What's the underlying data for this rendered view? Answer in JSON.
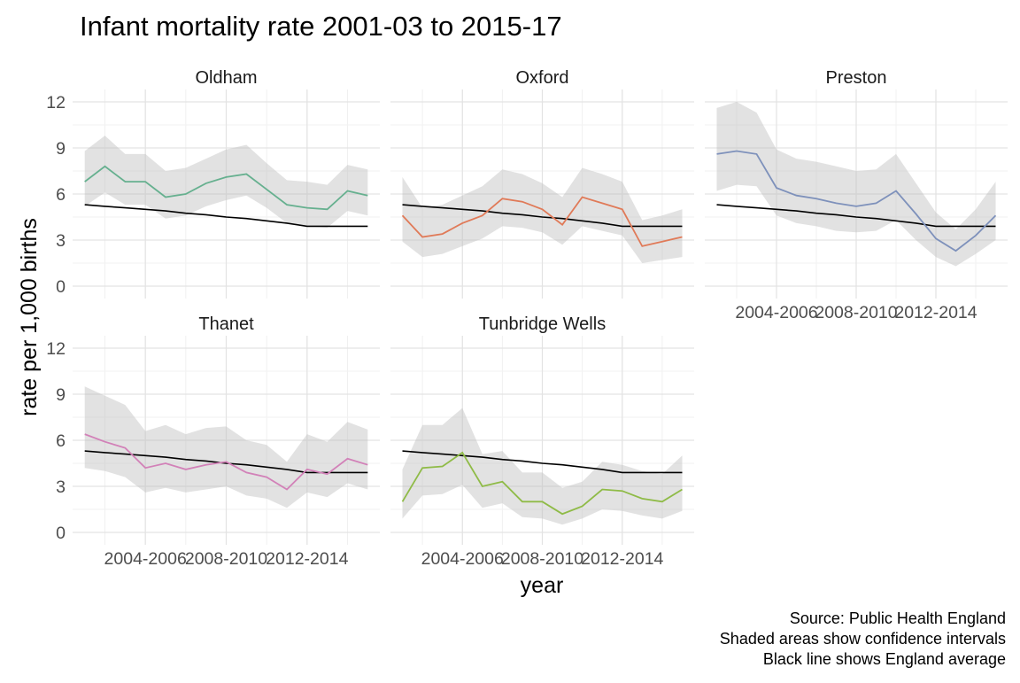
{
  "chart_data": {
    "type": "line",
    "title": "Infant mortality rate 2001-03 to 2015-17",
    "xlabel": "year",
    "ylabel": "rate per 1,000 births",
    "ylim": [
      0,
      12
    ],
    "yticks": [
      0,
      3,
      6,
      9,
      12
    ],
    "x": [
      "2001-2003",
      "2002-2004",
      "2003-2005",
      "2004-2006",
      "2005-2007",
      "2006-2008",
      "2007-2009",
      "2008-2010",
      "2009-2011",
      "2010-2012",
      "2011-2013",
      "2012-2014",
      "2013-2015",
      "2014-2016",
      "2015-2017"
    ],
    "xtick_labels": [
      "2004-2006",
      "2008-2010",
      "2012-2014"
    ],
    "england_average": [
      5.3,
      5.2,
      5.1,
      5.0,
      4.9,
      4.75,
      4.65,
      4.5,
      4.4,
      4.25,
      4.1,
      3.9,
      3.9,
      3.9,
      3.9
    ],
    "series": [
      {
        "name": "Oldham",
        "color": "#66b08f",
        "values": [
          6.8,
          7.8,
          6.8,
          6.8,
          5.8,
          6.0,
          6.7,
          7.1,
          7.3,
          6.3,
          5.3,
          5.1,
          5.0,
          6.2,
          5.9
        ],
        "lower": [
          5.2,
          6.1,
          5.3,
          5.3,
          4.4,
          4.6,
          5.2,
          5.6,
          5.9,
          5.1,
          4.1,
          3.9,
          3.8,
          4.9,
          4.6
        ],
        "upper": [
          8.8,
          9.8,
          8.6,
          8.6,
          7.5,
          7.7,
          8.3,
          8.9,
          9.2,
          8.0,
          6.9,
          6.8,
          6.6,
          7.9,
          7.6
        ]
      },
      {
        "name": "Oxford",
        "color": "#e07a58",
        "values": [
          4.6,
          3.2,
          3.4,
          4.1,
          4.6,
          5.7,
          5.5,
          5.0,
          4.0,
          5.8,
          5.4,
          5.0,
          2.6,
          2.9,
          3.2
        ],
        "lower": [
          2.9,
          1.9,
          2.1,
          2.6,
          3.1,
          3.9,
          3.8,
          3.5,
          2.7,
          3.9,
          3.6,
          3.3,
          1.5,
          1.7,
          1.9
        ],
        "upper": [
          7.1,
          5.1,
          5.3,
          5.9,
          6.5,
          7.6,
          7.3,
          6.7,
          5.8,
          7.7,
          7.3,
          6.8,
          4.3,
          4.6,
          5.0
        ]
      },
      {
        "name": "Preston",
        "color": "#7e91bb",
        "values": [
          8.6,
          8.8,
          8.6,
          6.4,
          5.9,
          5.7,
          5.4,
          5.2,
          5.4,
          6.2,
          4.7,
          3.1,
          2.3,
          3.3,
          4.6
        ],
        "lower": [
          6.2,
          6.6,
          6.5,
          4.6,
          4.1,
          3.9,
          3.6,
          3.5,
          3.6,
          4.3,
          3.0,
          1.9,
          1.3,
          2.1,
          3.0
        ],
        "upper": [
          11.6,
          12.0,
          11.3,
          8.9,
          8.3,
          8.1,
          7.8,
          7.5,
          7.6,
          8.6,
          6.7,
          4.8,
          3.7,
          5.0,
          6.8
        ]
      },
      {
        "name": "Thanet",
        "color": "#d281b8",
        "values": [
          6.4,
          5.9,
          5.5,
          4.2,
          4.5,
          4.1,
          4.4,
          4.6,
          3.9,
          3.6,
          2.8,
          4.1,
          3.8,
          4.8,
          4.4
        ],
        "lower": [
          4.2,
          4.0,
          3.6,
          2.6,
          2.9,
          2.6,
          2.8,
          3.0,
          2.4,
          2.2,
          1.6,
          2.6,
          2.3,
          3.2,
          2.8
        ],
        "upper": [
          9.5,
          8.9,
          8.3,
          6.6,
          7.0,
          6.4,
          6.8,
          6.9,
          6.0,
          5.7,
          4.6,
          6.4,
          5.9,
          7.2,
          6.7
        ]
      },
      {
        "name": "Tunbridge Wells",
        "color": "#8fbb47",
        "values": [
          2.0,
          4.2,
          4.3,
          5.2,
          3.0,
          3.3,
          2.0,
          2.0,
          1.2,
          1.7,
          2.8,
          2.7,
          2.2,
          2.0,
          2.8
        ],
        "lower": [
          0.9,
          2.4,
          2.5,
          3.1,
          1.6,
          1.9,
          1.0,
          0.9,
          0.5,
          0.9,
          1.5,
          1.4,
          1.1,
          0.9,
          1.4
        ],
        "upper": [
          4.1,
          7.0,
          7.0,
          8.1,
          5.1,
          5.3,
          3.9,
          3.9,
          2.9,
          3.3,
          4.6,
          4.4,
          4.0,
          3.8,
          5.0
        ]
      }
    ],
    "grid": true,
    "legend": "none"
  },
  "caption": {
    "line1": "Source: Public Health England",
    "line2": "Shaded areas show confidence intervals",
    "line3": "Black line shows England average"
  }
}
